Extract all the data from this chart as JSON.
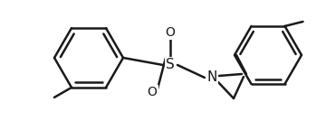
{
  "background_color": "#ffffff",
  "line_color": "#1a1a1a",
  "line_width": 1.8,
  "figsize": [
    3.6,
    1.44
  ],
  "dpi": 100,
  "xlim": [
    0,
    360
  ],
  "ylim": [
    0,
    144
  ]
}
